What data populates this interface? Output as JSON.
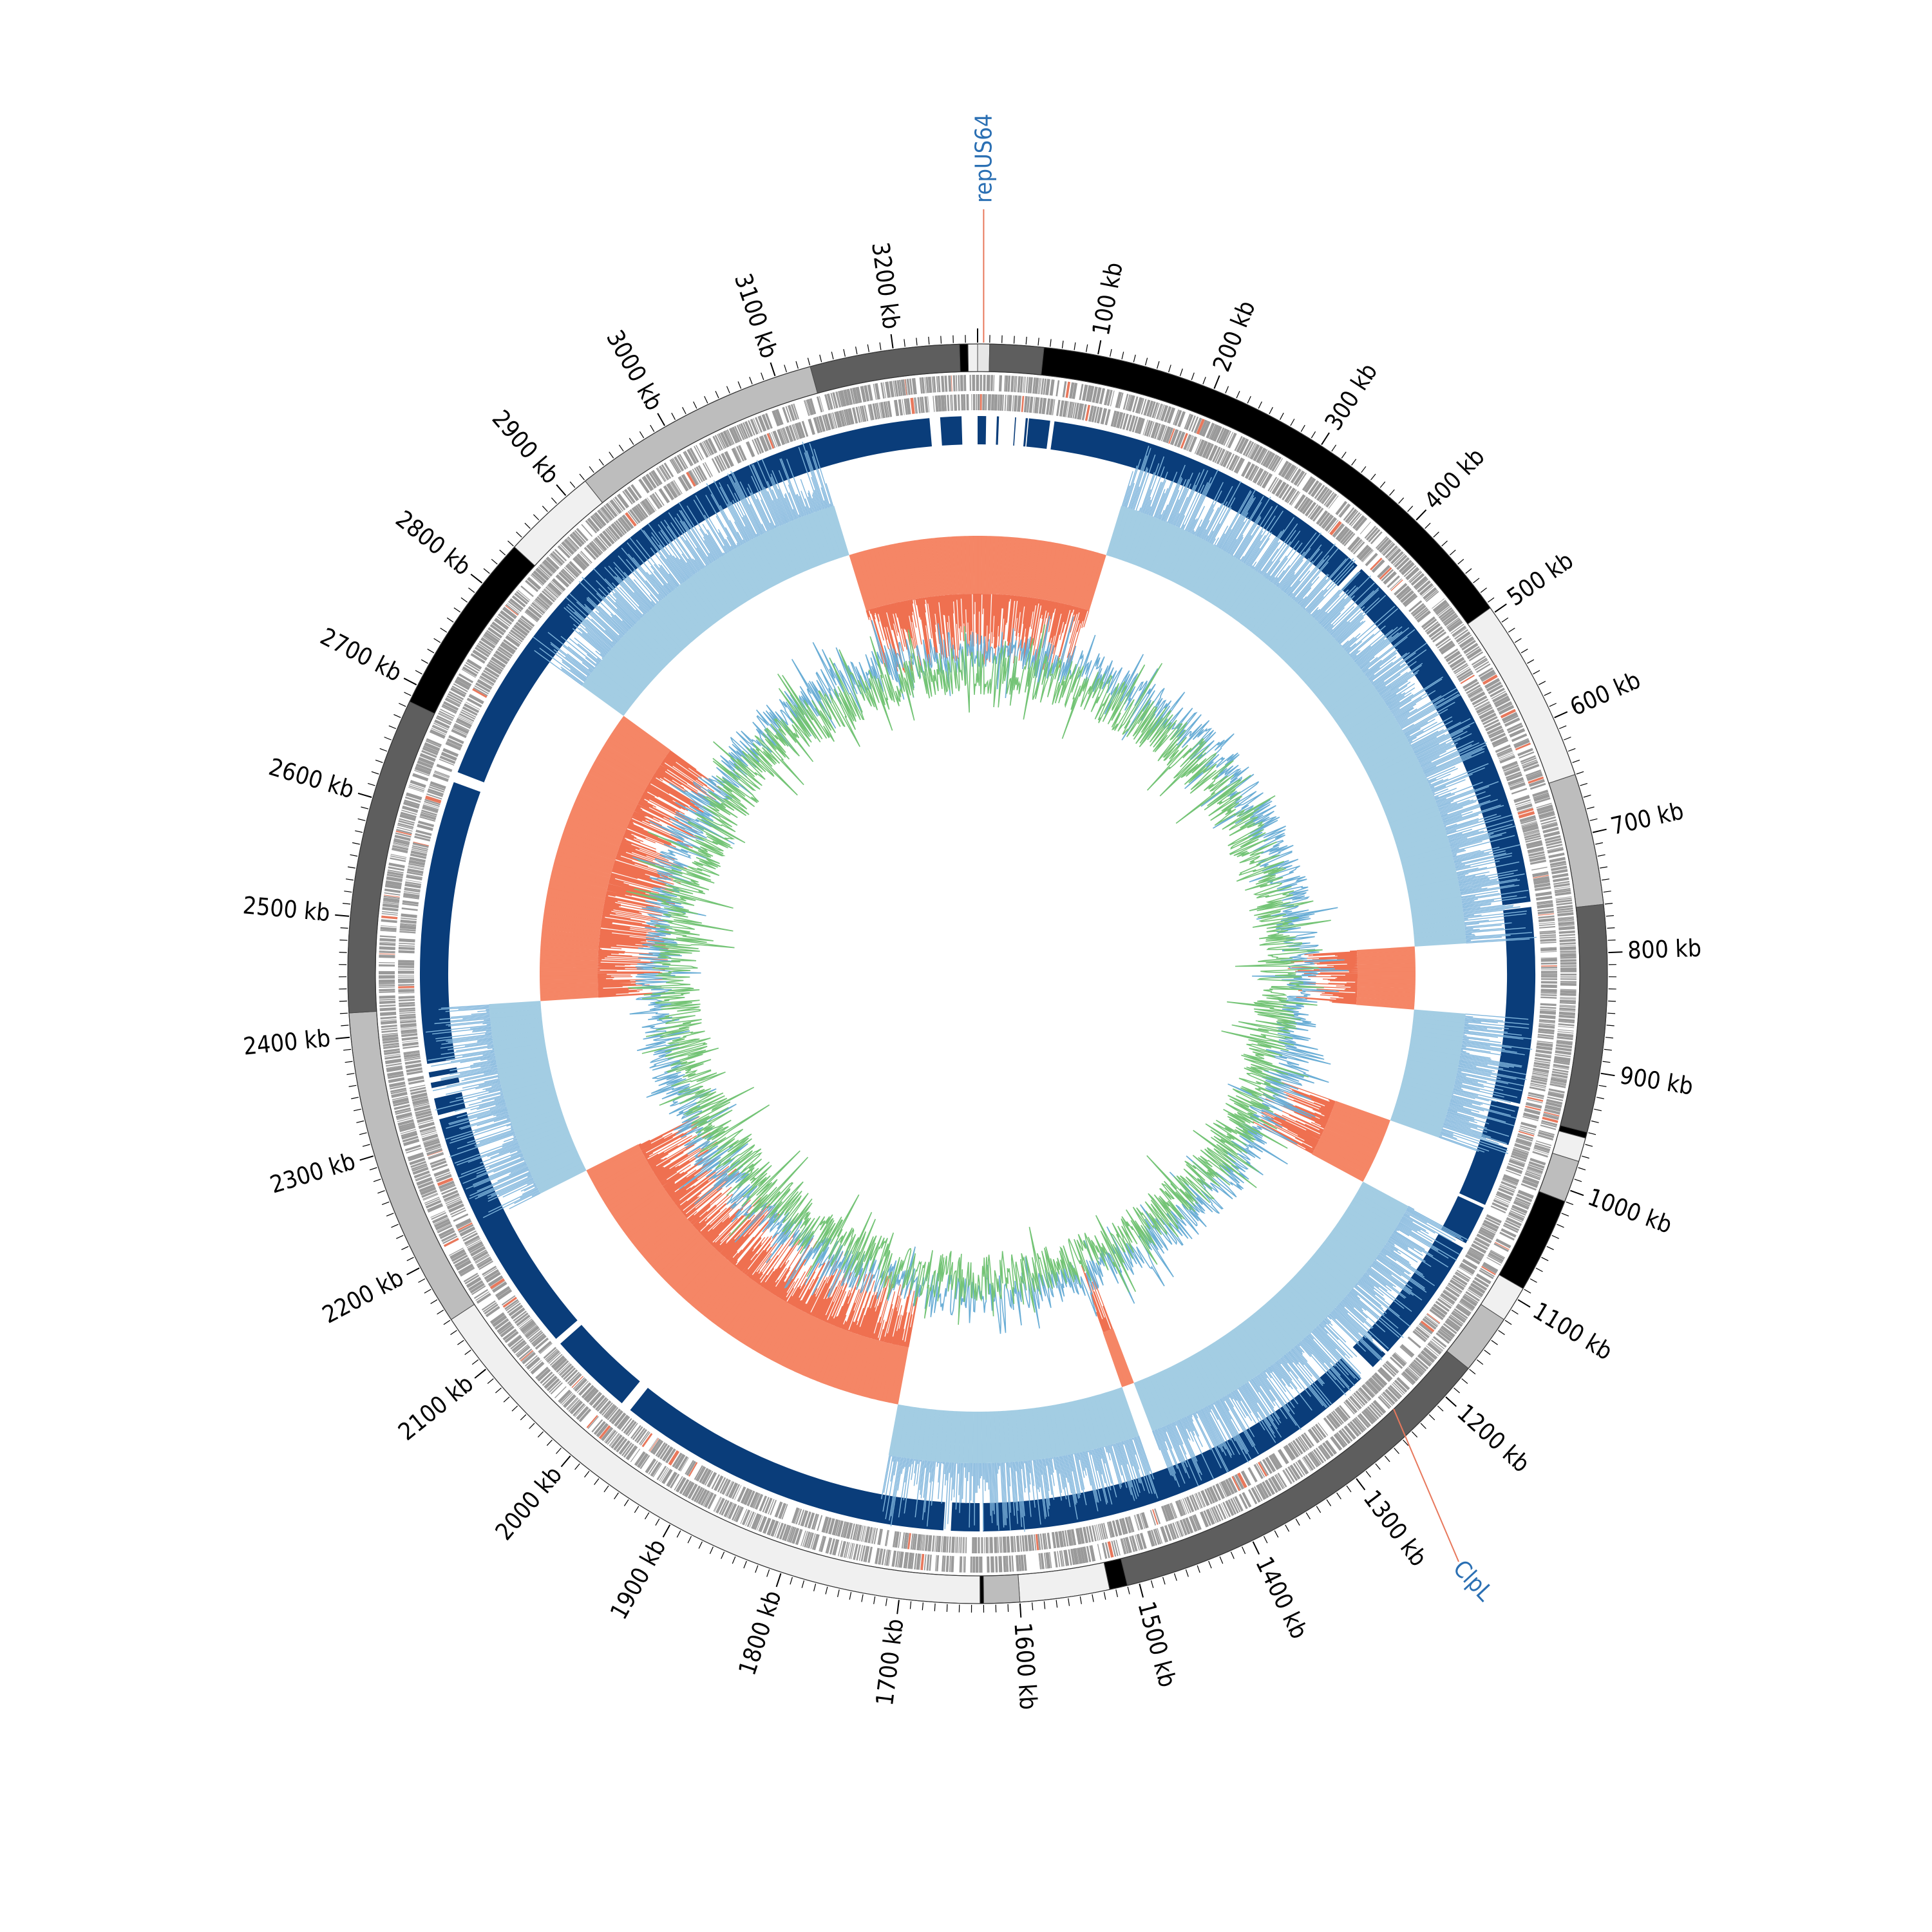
{
  "map": {
    "genome_size_kb": 3270,
    "unit": "kb",
    "tick_labels": [
      "100 kb",
      "200 kb",
      "300 kb",
      "400 kb",
      "500 kb",
      "600 kb",
      "700 kb",
      "800 kb",
      "900 kb",
      "1000 kb",
      "1100 kb",
      "1200 kb",
      "1300 kb",
      "1400 kb",
      "1500 kb",
      "1600 kb",
      "1700 kb",
      "1800 kb",
      "1900 kb",
      "2000 kb",
      "2100 kb",
      "2200 kb",
      "2300 kb",
      "2400 kb",
      "2500 kb",
      "2600 kb",
      "2700 kb",
      "2800 kb",
      "2900 kb",
      "3000 kb",
      "3100 kb",
      "3200 kb"
    ],
    "tick_values_kb": [
      100,
      200,
      300,
      400,
      500,
      600,
      700,
      800,
      900,
      1000,
      1100,
      1200,
      1300,
      1400,
      1500,
      1600,
      1700,
      1800,
      1900,
      2000,
      2100,
      2200,
      2300,
      2400,
      2500,
      2600,
      2700,
      2800,
      2900,
      3000,
      3100,
      3200
    ],
    "contig_segments": [
      {
        "start": 0,
        "end": 10,
        "color": "#e6e6e6"
      },
      {
        "start": 10,
        "end": 55,
        "color": "#5e5e5e"
      },
      {
        "start": 55,
        "end": 495,
        "color": "#000000"
      },
      {
        "start": 495,
        "end": 650,
        "color": "#f0f0f0"
      },
      {
        "start": 650,
        "end": 760,
        "color": "#bdbdbd"
      },
      {
        "start": 760,
        "end": 950,
        "color": "#5e5e5e"
      },
      {
        "start": 950,
        "end": 955,
        "color": "#000000"
      },
      {
        "start": 955,
        "end": 975,
        "color": "#f0f0f0"
      },
      {
        "start": 975,
        "end": 1010,
        "color": "#bdbdbd"
      },
      {
        "start": 1010,
        "end": 1090,
        "color": "#000000"
      },
      {
        "start": 1090,
        "end": 1120,
        "color": "#f0f0f0"
      },
      {
        "start": 1120,
        "end": 1170,
        "color": "#bdbdbd"
      },
      {
        "start": 1170,
        "end": 1510,
        "color": "#5e5e5e"
      },
      {
        "start": 1510,
        "end": 1525,
        "color": "#000000"
      },
      {
        "start": 1525,
        "end": 1600,
        "color": "#f0f0f0"
      },
      {
        "start": 1600,
        "end": 1630,
        "color": "#bdbdbd"
      },
      {
        "start": 1630,
        "end": 1633,
        "color": "#000000"
      },
      {
        "start": 1633,
        "end": 2150,
        "color": "#f0f0f0"
      },
      {
        "start": 2150,
        "end": 2420,
        "color": "#bdbdbd"
      },
      {
        "start": 2420,
        "end": 2685,
        "color": "#5e5e5e"
      },
      {
        "start": 2685,
        "end": 2840,
        "color": "#000000"
      },
      {
        "start": 2840,
        "end": 2920,
        "color": "#f0f0f0"
      },
      {
        "start": 2920,
        "end": 3130,
        "color": "#bdbdbd"
      },
      {
        "start": 3130,
        "end": 3255,
        "color": "#5e5e5e"
      },
      {
        "start": 3255,
        "end": 3262,
        "color": "#000000"
      },
      {
        "start": 3262,
        "end": 3270,
        "color": "#f0f0f0"
      }
    ],
    "blast_blocks": [
      {
        "start": 0,
        "end": 8
      },
      {
        "start": 18,
        "end": 20
      },
      {
        "start": 35,
        "end": 36
      },
      {
        "start": 45,
        "end": 47
      },
      {
        "start": 48,
        "end": 68
      },
      {
        "start": 72,
        "end": 390
      },
      {
        "start": 395,
        "end": 750
      },
      {
        "start": 755,
        "end": 940
      },
      {
        "start": 943,
        "end": 980
      },
      {
        "start": 983,
        "end": 1040
      },
      {
        "start": 1043,
        "end": 1080
      },
      {
        "start": 1085,
        "end": 1205
      },
      {
        "start": 1208,
        "end": 1225
      },
      {
        "start": 1240,
        "end": 1630
      },
      {
        "start": 1633,
        "end": 1660
      },
      {
        "start": 1667,
        "end": 1985
      },
      {
        "start": 1995,
        "end": 2075
      },
      {
        "start": 2081,
        "end": 2315
      },
      {
        "start": 2319,
        "end": 2335
      },
      {
        "start": 2345,
        "end": 2350
      },
      {
        "start": 2355,
        "end": 2360
      },
      {
        "start": 2368,
        "end": 2635
      },
      {
        "start": 2645,
        "end": 3225
      },
      {
        "start": 3235,
        "end": 3255
      }
    ],
    "gc_skew_negative_regions": [
      {
        "start": 0,
        "end": 155
      },
      {
        "start": 785,
        "end": 860
      },
      {
        "start": 995,
        "end": 1075
      },
      {
        "start": 1445,
        "end": 1460
      },
      {
        "start": 1730,
        "end": 2210
      },
      {
        "start": 2420,
        "end": 2780
      },
      {
        "start": 3115,
        "end": 3270
      }
    ],
    "colors": {
      "blast_block": "#0a3d7a",
      "cds": "#9a9a9a",
      "cds_highlight": "#e8785c",
      "skew_positive": "#9ecae1",
      "skew_negative": "#f4805e",
      "skew_line_pos": "#7fb5dc",
      "skew_line_neg": "#ef7050",
      "gc_line_a": "#6baed6",
      "gc_line_b": "#74c476",
      "label_line": "#e8785c",
      "label_text": "#2a6fb3"
    }
  },
  "annotations": [
    {
      "label": "repUS64",
      "position_kb": 5
    },
    {
      "label": "ClpL",
      "position_kb": 1238
    }
  ]
}
